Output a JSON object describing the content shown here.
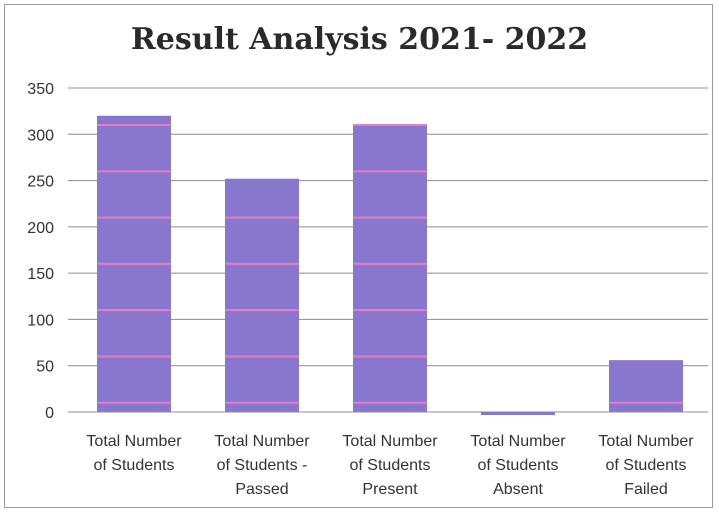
{
  "chart_data": {
    "type": "bar",
    "title": "Result Analysis 2021- 2022",
    "categories": [
      [
        "Total Number",
        "of Students"
      ],
      [
        "Total Number",
        "of Students -",
        "Passed"
      ],
      [
        "Total Number",
        "of Students",
        "Present"
      ],
      [
        "Total Number",
        "of Students",
        "Absent"
      ],
      [
        "Total Number",
        "of Students",
        "Failed"
      ]
    ],
    "values": [
      320,
      252,
      311,
      0,
      56
    ],
    "ylim": [
      0,
      350
    ],
    "yticks": [
      0,
      50,
      100,
      150,
      200,
      250,
      300,
      350
    ],
    "grid": true,
    "bar_color": "#8877cc",
    "stripe_color": "#e080c8"
  }
}
